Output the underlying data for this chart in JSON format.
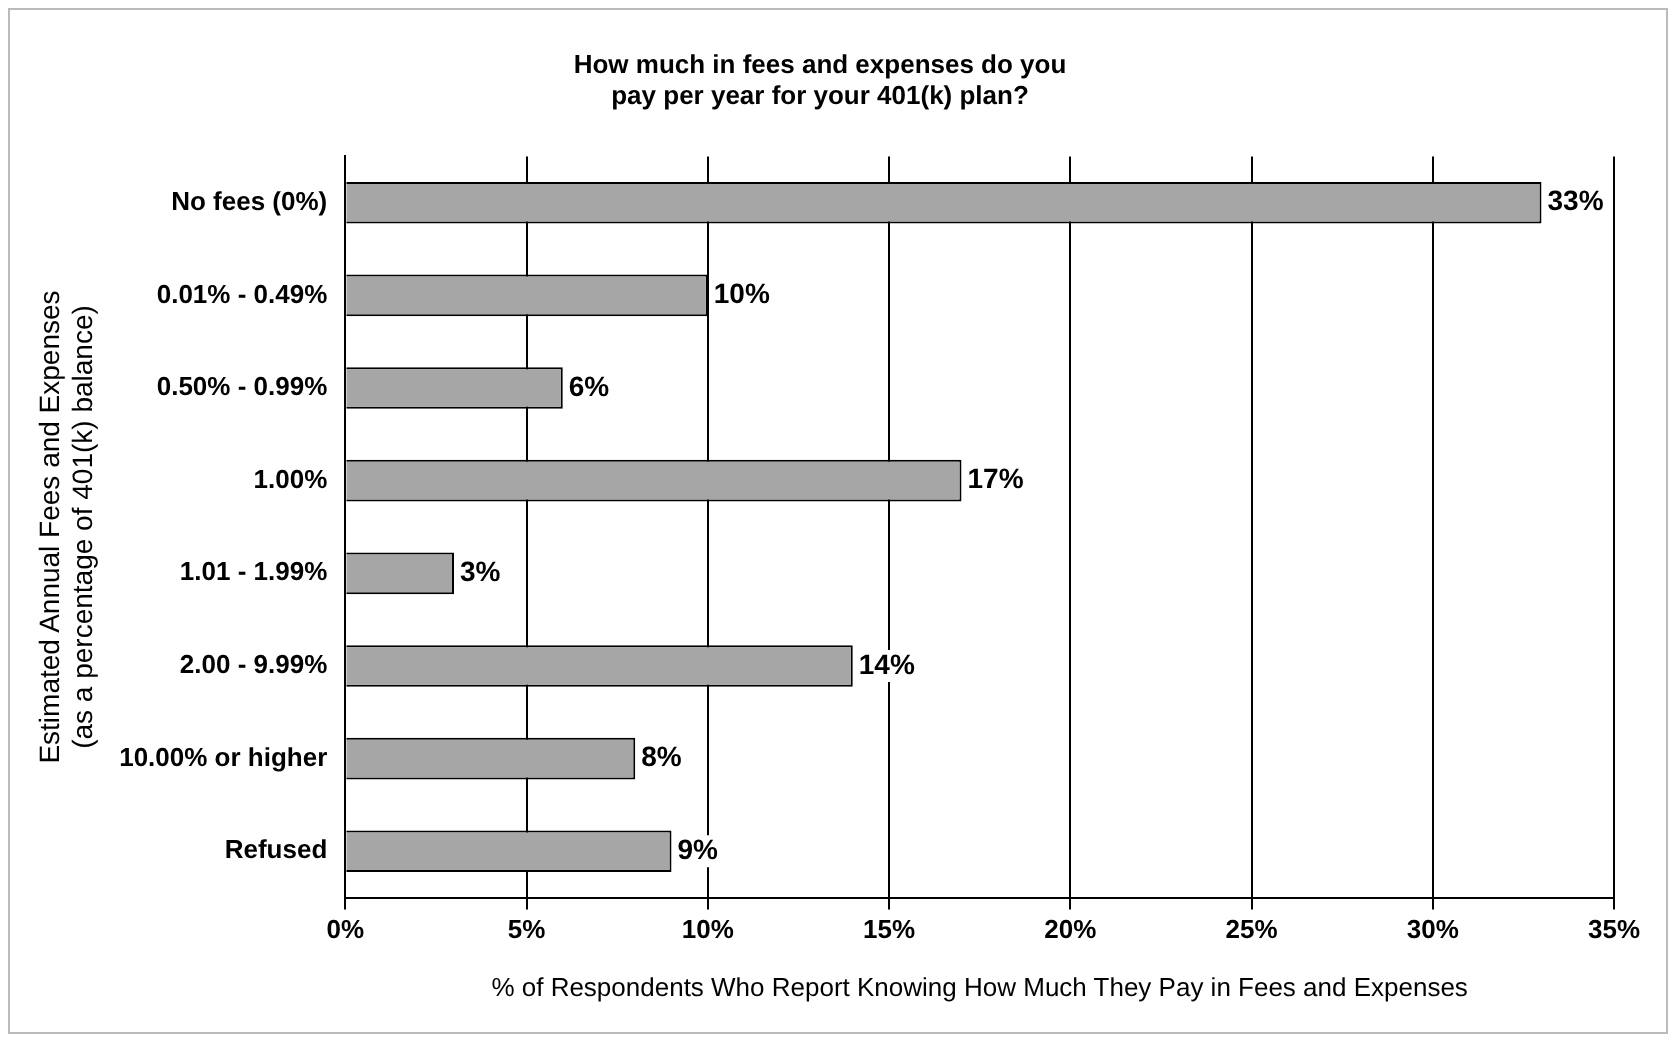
{
  "chart_data": {
    "type": "bar",
    "orientation": "horizontal",
    "title": "How much in fees and expenses do you\npay per year for your 401(k) plan?",
    "xlabel": "% of Respondents Who Report Knowing How Much They Pay in Fees and Expenses",
    "ylabel": "Estimated Annual Fees and Expenses\n(as a percentage of 401(k) balance)",
    "categories": [
      "No fees (0%)",
      "0.01% - 0.49%",
      "0.50% - 0.99%",
      "1.00%",
      "1.01 - 1.99%",
      "2.00 - 9.99%",
      "10.00% or higher",
      "Refused"
    ],
    "values": [
      33,
      10,
      6,
      17,
      3,
      14,
      8,
      9
    ],
    "value_labels": [
      "33%",
      "10%",
      "6%",
      "17%",
      "3%",
      "14%",
      "8%",
      "9%"
    ],
    "color": "#a6a6a6",
    "xlim": [
      0,
      35
    ],
    "xticks": [
      {
        "value": 0,
        "label": "0%"
      },
      {
        "value": 5,
        "label": "5%"
      },
      {
        "value": 10,
        "label": "10%"
      },
      {
        "value": 15,
        "label": "15%"
      },
      {
        "value": 20,
        "label": "20%"
      },
      {
        "value": 25,
        "label": "25%"
      },
      {
        "value": 30,
        "label": "30%"
      },
      {
        "value": 35,
        "label": "35%"
      }
    ],
    "grid": "x",
    "legend": false
  }
}
